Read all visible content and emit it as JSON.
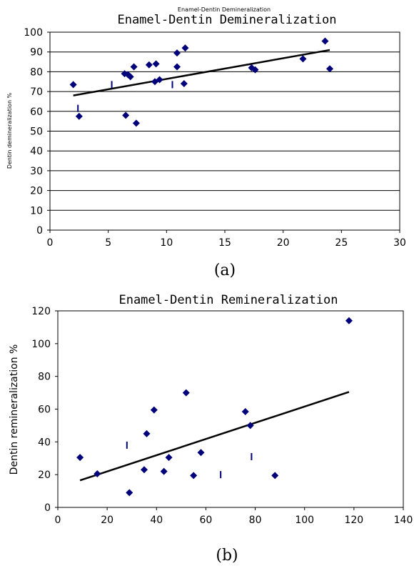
{
  "charts": [
    {
      "overlay_title": "Enamel-Dentin Demineralization",
      "caption": "(a)",
      "chart_data": {
        "type": "scatter",
        "title": "Enamel-Dentin Demineralization",
        "xlabel": "",
        "ylabel": "Dentin demineralization %",
        "xlim": [
          0,
          30
        ],
        "ylim": [
          0,
          100
        ],
        "xticks": [
          0,
          5,
          10,
          15,
          20,
          25,
          30
        ],
        "yticks": [
          0,
          10,
          20,
          30,
          40,
          50,
          60,
          70,
          80,
          90,
          100
        ],
        "grid": "horizontal",
        "marker_color": "#00007a",
        "points": [
          [
            2.0,
            73.5
          ],
          [
            2.5,
            57.5
          ],
          [
            6.4,
            79
          ],
          [
            6.5,
            58
          ],
          [
            6.7,
            78.5
          ],
          [
            6.9,
            77.5
          ],
          [
            7.2,
            82.5
          ],
          [
            7.4,
            54
          ],
          [
            8.5,
            83.5
          ],
          [
            9.0,
            75
          ],
          [
            9.1,
            84
          ],
          [
            9.4,
            76
          ],
          [
            10.9,
            82.5
          ],
          [
            10.9,
            89.5
          ],
          [
            11.5,
            74
          ],
          [
            11.6,
            92
          ],
          [
            17.3,
            82
          ],
          [
            17.6,
            81
          ],
          [
            21.7,
            86.5
          ],
          [
            23.6,
            95.5
          ],
          [
            24.0,
            81.5
          ]
        ],
        "error_ticks": [
          [
            2.4,
            61.5
          ],
          [
            5.3,
            73.5
          ],
          [
            10.5,
            73.5
          ]
        ],
        "trend": [
          [
            2.0,
            68
          ],
          [
            24.0,
            91
          ]
        ]
      }
    },
    {
      "caption": "(b)",
      "chart_data": {
        "type": "scatter",
        "title": "Enamel-Dentin Remineralization",
        "xlabel": "",
        "ylabel": "Dentin remineralization %",
        "xlim": [
          0,
          140
        ],
        "ylim": [
          0,
          120
        ],
        "xticks": [
          0,
          20,
          40,
          60,
          80,
          100,
          120,
          140
        ],
        "yticks": [
          0,
          20,
          40,
          60,
          80,
          100,
          120
        ],
        "grid": "none",
        "marker_color": "#00007a",
        "points": [
          [
            9,
            30.5
          ],
          [
            16,
            20.5
          ],
          [
            29,
            9
          ],
          [
            35,
            23
          ],
          [
            36,
            45
          ],
          [
            39,
            59.5
          ],
          [
            43,
            22
          ],
          [
            45,
            30.5
          ],
          [
            52,
            70
          ],
          [
            55,
            19.5
          ],
          [
            58,
            33.5
          ],
          [
            76,
            58.5
          ],
          [
            78,
            50
          ],
          [
            88,
            19.5
          ],
          [
            118,
            114
          ]
        ],
        "error_ticks": [
          [
            28,
            38
          ],
          [
            66,
            20
          ],
          [
            78.5,
            31
          ]
        ],
        "trend": [
          [
            9,
            16.5
          ],
          [
            118,
            70.5
          ]
        ]
      }
    }
  ]
}
